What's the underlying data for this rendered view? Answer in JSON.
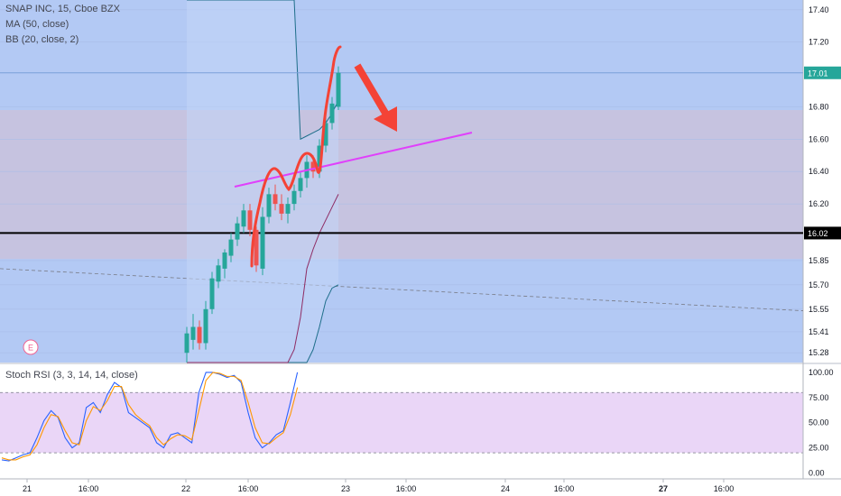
{
  "header": {
    "symbol_line": "SNAP INC, 15, Cboe BZX",
    "ma_label": "MA (50, close)",
    "bb_label": "BB (20, close, 2)"
  },
  "oscillator": {
    "label": "Stoch RSI (3, 3, 14, 14, close)"
  },
  "earnings_marker": {
    "label": "E"
  },
  "colors": {
    "up": "#26a69a",
    "down": "#ef5350",
    "stoch_k": "#2962ff",
    "stoch_d": "#ff9800",
    "bb_middle": "#8e2c64",
    "bb_band": "#1e6e8a",
    "ma": "#787b86",
    "trendline": "#e040fb",
    "annotation": "#f44336",
    "price_badge": "#26a69a",
    "support_line": "#000000"
  },
  "chart_data": [
    {
      "type": "candlestick",
      "ylim": [
        15.22,
        17.46
      ],
      "y_ticks": [
        "17.40",
        "17.20",
        "17.01",
        "16.80",
        "16.60",
        "16.40",
        "16.20",
        "16.02",
        "15.85",
        "15.70",
        "15.55",
        "15.41",
        "15.28"
      ],
      "x_ticks": [
        "21",
        "16:00",
        "22",
        "16:00",
        "23",
        "16:00",
        "24",
        "16:00",
        "27",
        "16:00"
      ],
      "last_price": "17.01",
      "marked_level": "16.02",
      "zones": [
        {
          "from": 15.22,
          "to": 17.46,
          "color": "#b3c9f4"
        },
        {
          "from": 15.86,
          "to": 16.78,
          "color": "#c6c3e0"
        }
      ],
      "horizontal_lines": [
        {
          "value": 16.02,
          "color": "#000000"
        },
        {
          "value": 17.01,
          "color": "#7b9fd9"
        }
      ],
      "candles": [
        {
          "i": 0,
          "o": 15.28,
          "h": 15.44,
          "l": 15.22,
          "c": 15.4
        },
        {
          "i": 1,
          "o": 15.36,
          "h": 15.52,
          "l": 15.3,
          "c": 15.44
        },
        {
          "i": 2,
          "o": 15.44,
          "h": 15.48,
          "l": 15.3,
          "c": 15.34
        },
        {
          "i": 3,
          "o": 15.34,
          "h": 15.6,
          "l": 15.3,
          "c": 15.55
        },
        {
          "i": 4,
          "o": 15.55,
          "h": 15.78,
          "l": 15.52,
          "c": 15.74
        },
        {
          "i": 5,
          "o": 15.72,
          "h": 15.86,
          "l": 15.68,
          "c": 15.82
        },
        {
          "i": 6,
          "o": 15.8,
          "h": 15.92,
          "l": 15.74,
          "c": 15.9
        },
        {
          "i": 7,
          "o": 15.88,
          "h": 16.02,
          "l": 15.84,
          "c": 15.98
        },
        {
          "i": 8,
          "o": 15.98,
          "h": 16.12,
          "l": 15.94,
          "c": 16.08
        },
        {
          "i": 9,
          "o": 16.06,
          "h": 16.2,
          "l": 16.02,
          "c": 16.16
        },
        {
          "i": 10,
          "o": 16.16,
          "h": 16.2,
          "l": 16.0,
          "c": 16.04
        },
        {
          "i": 11,
          "o": 16.04,
          "h": 16.06,
          "l": 15.78,
          "c": 15.82
        },
        {
          "i": 12,
          "o": 15.8,
          "h": 16.18,
          "l": 15.76,
          "c": 16.12
        },
        {
          "i": 13,
          "o": 16.12,
          "h": 16.3,
          "l": 16.08,
          "c": 16.26
        },
        {
          "i": 14,
          "o": 16.26,
          "h": 16.32,
          "l": 16.16,
          "c": 16.2
        },
        {
          "i": 15,
          "o": 16.2,
          "h": 16.26,
          "l": 16.1,
          "c": 16.14
        },
        {
          "i": 16,
          "o": 16.14,
          "h": 16.24,
          "l": 16.08,
          "c": 16.2
        },
        {
          "i": 17,
          "o": 16.2,
          "h": 16.32,
          "l": 16.16,
          "c": 16.28
        },
        {
          "i": 18,
          "o": 16.28,
          "h": 16.4,
          "l": 16.24,
          "c": 16.36
        },
        {
          "i": 19,
          "o": 16.36,
          "h": 16.5,
          "l": 16.3,
          "c": 16.46
        },
        {
          "i": 20,
          "o": 16.46,
          "h": 16.5,
          "l": 16.36,
          "c": 16.4
        },
        {
          "i": 21,
          "o": 16.4,
          "h": 16.6,
          "l": 16.36,
          "c": 16.56
        },
        {
          "i": 22,
          "o": 16.56,
          "h": 16.74,
          "l": 16.52,
          "c": 16.7
        },
        {
          "i": 23,
          "o": 16.7,
          "h": 16.86,
          "l": 16.66,
          "c": 16.82
        },
        {
          "i": 24,
          "o": 16.8,
          "h": 17.05,
          "l": 16.78,
          "c": 17.01
        }
      ],
      "candle_x": {
        "first": 207,
        "step": 7.0
      },
      "bb_upper": [
        17.46,
        17.46,
        17.46,
        17.46,
        17.46,
        17.46,
        17.46,
        17.46,
        17.46,
        17.46,
        17.46,
        17.46,
        17.46,
        17.46,
        17.46,
        17.46,
        17.46,
        17.46,
        16.6,
        16.62,
        16.64,
        16.66,
        16.7,
        16.76,
        16.84
      ],
      "bb_lower": [
        15.22,
        15.22,
        15.22,
        15.22,
        15.22,
        15.22,
        15.22,
        15.22,
        15.22,
        15.22,
        15.22,
        15.22,
        15.22,
        15.22,
        15.22,
        15.22,
        15.22,
        15.22,
        15.22,
        15.22,
        15.3,
        15.44,
        15.6,
        15.68,
        15.7
      ],
      "bb_middle": [
        15.22,
        15.22,
        15.22,
        15.22,
        15.22,
        15.22,
        15.22,
        15.22,
        15.22,
        15.22,
        15.22,
        15.22,
        15.22,
        15.22,
        15.22,
        15.22,
        15.22,
        15.3,
        15.5,
        15.8,
        15.92,
        16.02,
        16.1,
        16.18,
        16.26
      ],
      "ma_line": {
        "start_value": 15.8,
        "end_value": 15.54
      }
    },
    {
      "type": "line",
      "title": "Stoch RSI (3, 3, 14, 14, close)",
      "ylim": [
        -5,
        108
      ],
      "y_ticks": [
        "100.00",
        "75.00",
        "50.00",
        "25.00",
        "0.00"
      ],
      "band": [
        20,
        80
      ],
      "x_start": 2,
      "x_step": 7.8,
      "series": [
        {
          "values": [
            13,
            12,
            15,
            18,
            20,
            35,
            52,
            62,
            55,
            35,
            25,
            30,
            65,
            70,
            60,
            78,
            90,
            85,
            60,
            55,
            50,
            45,
            30,
            25,
            38,
            40,
            35,
            30,
            80,
            100,
            100,
            98,
            95,
            97,
            90,
            60,
            35,
            25,
            30,
            38,
            42,
            70,
            100
          ]
        },
        {
          "values": [
            15,
            13,
            13,
            16,
            18,
            28,
            45,
            58,
            56,
            42,
            30,
            28,
            52,
            66,
            62,
            72,
            86,
            86,
            68,
            58,
            52,
            47,
            35,
            28,
            34,
            38,
            37,
            33,
            62,
            92,
            100,
            99,
            96,
            96,
            92,
            70,
            45,
            30,
            29,
            35,
            40,
            58,
            85
          ]
        }
      ]
    }
  ]
}
